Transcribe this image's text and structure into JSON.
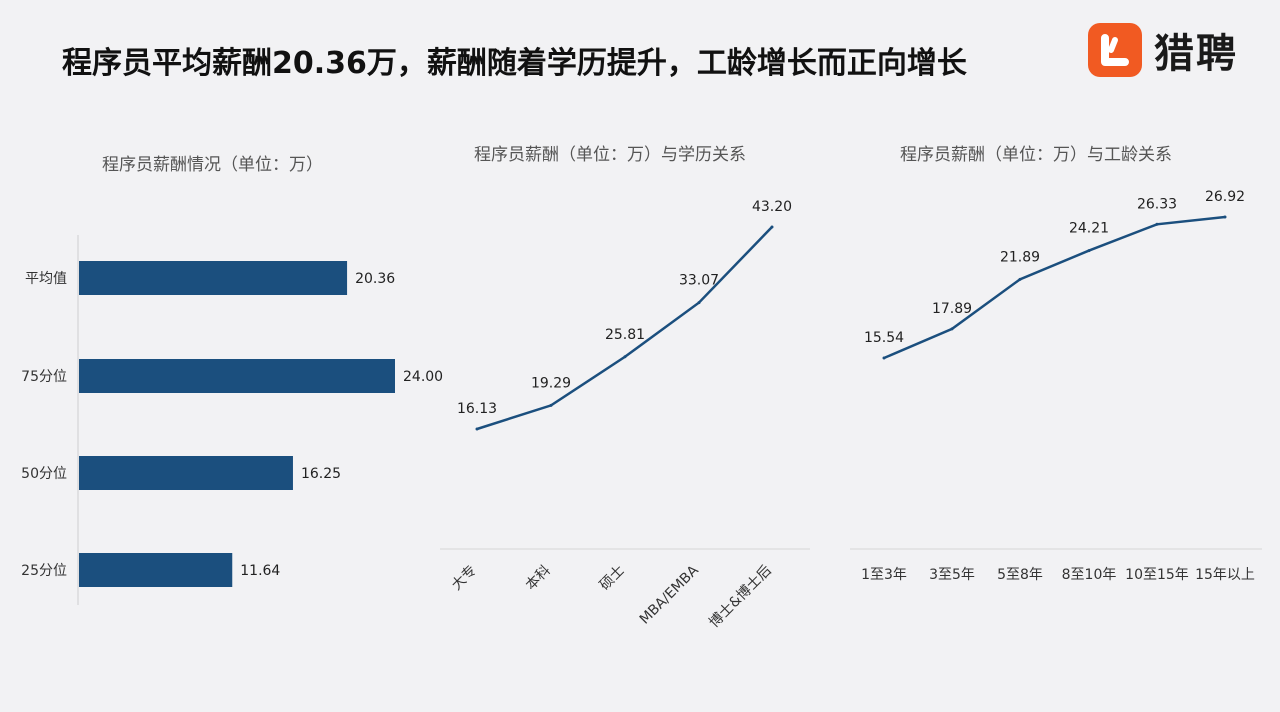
{
  "header": {
    "title": "程序员平均薪酬20.36万，薪酬随着学历提升，工龄增长而正向增长",
    "logo_text": "猎聘",
    "logo_icon": "liepin-logo-icon",
    "accent": "#f15a22"
  },
  "chart_data": [
    {
      "type": "bar",
      "orientation": "horizontal",
      "title": "程序员薪酬情况（单位：万）",
      "categories": [
        "平均值",
        "75分位",
        "50分位",
        "25分位"
      ],
      "values": [
        20.36,
        24.0,
        16.25,
        11.64
      ],
      "value_labels": [
        "20.36",
        "24.00",
        "16.25",
        "11.64"
      ],
      "xlim": [
        0,
        26
      ],
      "color": "#1b4f7e",
      "grid": false,
      "legend": "none"
    },
    {
      "type": "line",
      "title": "程序员薪酬（单位：万）与学历关系",
      "categories": [
        "大专",
        "本科",
        "硕士",
        "MBA/EMBA",
        "博士&博士后"
      ],
      "values": [
        16.13,
        19.29,
        25.81,
        33.07,
        43.2
      ],
      "value_labels": [
        "16.13",
        "19.29",
        "25.81",
        "33.07",
        "43.20"
      ],
      "ylim": [
        10,
        45
      ],
      "color": "#1b4f7e",
      "grid": false,
      "legend": "none"
    },
    {
      "type": "line",
      "title": "程序员薪酬（单位：万）与工龄关系",
      "categories": [
        "1至3年",
        "3至5年",
        "5至8年",
        "8至10年",
        "10至15年",
        "15年以上"
      ],
      "values": [
        15.54,
        17.89,
        21.89,
        24.21,
        26.33,
        26.92
      ],
      "value_labels": [
        "15.54",
        "17.89",
        "21.89",
        "24.21",
        "26.33",
        "26.92"
      ],
      "ylim": [
        12,
        28
      ],
      "color": "#1b4f7e",
      "grid": false,
      "legend": "none"
    }
  ]
}
